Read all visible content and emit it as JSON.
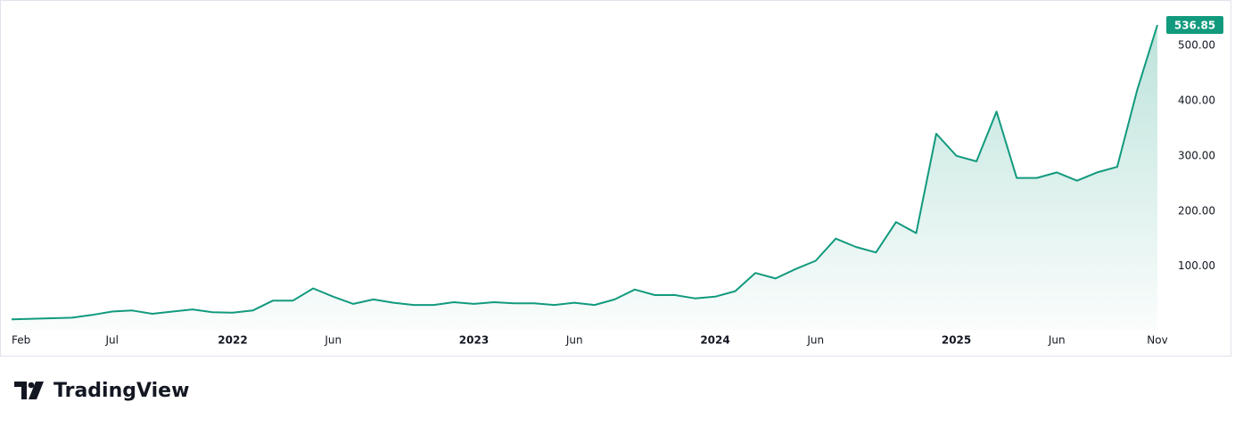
{
  "chart_data": {
    "type": "area",
    "x": [
      "2021-02",
      "2021-03",
      "2021-04",
      "2021-05",
      "2021-06",
      "2021-07",
      "2021-08",
      "2021-09",
      "2021-10",
      "2021-11",
      "2021-12",
      "2022-01",
      "2022-02",
      "2022-03",
      "2022-04",
      "2022-05",
      "2022-06",
      "2022-07",
      "2022-08",
      "2022-09",
      "2022-10",
      "2022-11",
      "2022-12",
      "2023-01",
      "2023-02",
      "2023-03",
      "2023-04",
      "2023-05",
      "2023-06",
      "2023-07",
      "2023-08",
      "2023-09",
      "2023-10",
      "2023-11",
      "2023-12",
      "2024-01",
      "2024-02",
      "2024-03",
      "2024-04",
      "2024-05",
      "2024-06",
      "2024-07",
      "2024-08",
      "2024-09",
      "2024-10",
      "2024-11",
      "2024-12",
      "2025-01",
      "2025-02",
      "2025-03",
      "2025-04",
      "2025-05",
      "2025-06",
      "2025-07",
      "2025-08",
      "2025-09",
      "2025-10",
      "2025-11"
    ],
    "values": [
      4,
      5,
      6,
      7,
      12,
      18,
      20,
      14,
      18,
      22,
      17,
      16,
      20,
      38,
      38,
      60,
      45,
      32,
      40,
      34,
      30,
      30,
      35,
      32,
      35,
      33,
      33,
      30,
      34,
      30,
      40,
      58,
      48,
      48,
      42,
      45,
      55,
      88,
      78,
      95,
      110,
      150,
      135,
      125,
      180,
      160,
      340,
      300,
      290,
      380,
      260,
      260,
      270,
      255,
      270,
      280,
      420,
      536.85
    ],
    "color": "#129a7e",
    "xlim": [
      "2021-02",
      "2025-11"
    ],
    "xticks": [
      {
        "value": "2021-02",
        "label": "Feb"
      },
      {
        "value": "2021-07",
        "label": "Jul"
      },
      {
        "value": "2022-01",
        "label": "2022"
      },
      {
        "value": "2022-06",
        "label": "Jun"
      },
      {
        "value": "2023-01",
        "label": "2023"
      },
      {
        "value": "2023-06",
        "label": "Jun"
      },
      {
        "value": "2024-01",
        "label": "2024"
      },
      {
        "value": "2024-06",
        "label": "Jun"
      },
      {
        "value": "2025-01",
        "label": "2025"
      },
      {
        "value": "2025-06",
        "label": "Jun"
      },
      {
        "value": "2025-11",
        "label": "Nov"
      }
    ],
    "ylim": [
      -15,
      582
    ],
    "yticks": [
      {
        "value": 100,
        "label": "100.00"
      },
      {
        "value": 200,
        "label": "200.00"
      },
      {
        "value": 300,
        "label": "300.00"
      },
      {
        "value": 400,
        "label": "400.00"
      },
      {
        "value": 500,
        "label": "500.00"
      }
    ],
    "grid": false
  },
  "logo_text": "TradingView"
}
